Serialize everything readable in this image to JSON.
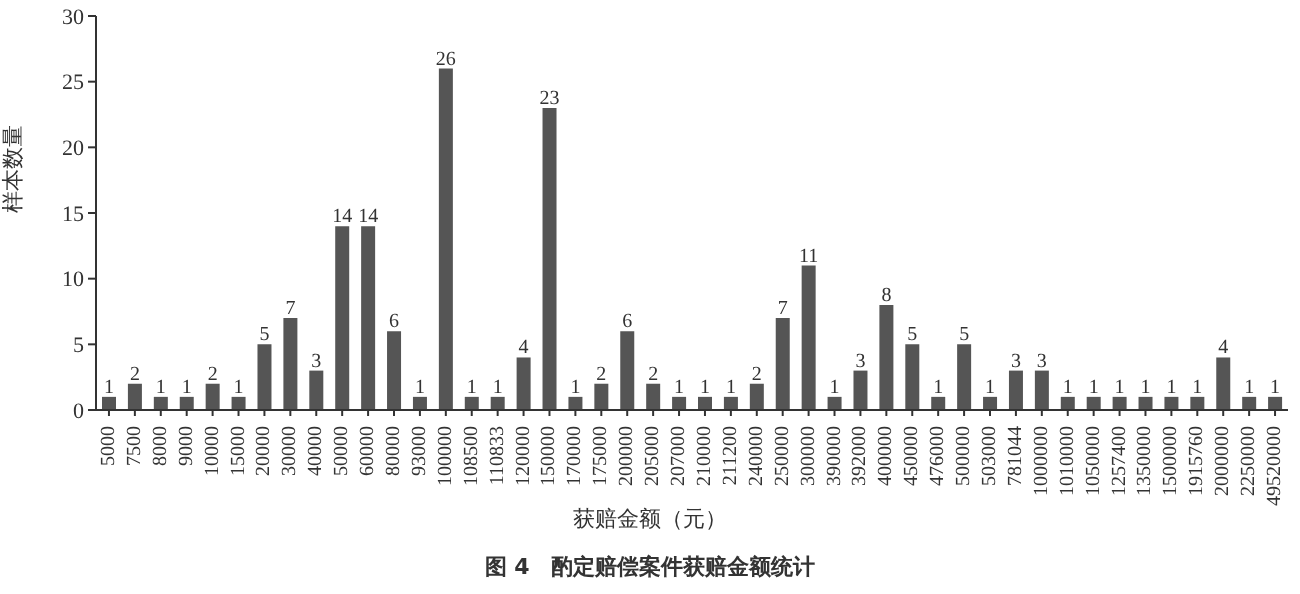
{
  "chart_data": {
    "type": "bar",
    "title": "图 4　酌定赔偿案件获赔金额统计",
    "xlabel": "获赔金额（元）",
    "ylabel": "样本数量",
    "categories": [
      "5000",
      "7500",
      "8000",
      "9000",
      "10000",
      "15000",
      "20000",
      "30000",
      "40000",
      "50000",
      "60000",
      "80000",
      "93000",
      "100000",
      "108500",
      "110833",
      "120000",
      "150000",
      "170000",
      "175000",
      "200000",
      "205000",
      "207000",
      "210000",
      "211200",
      "240000",
      "250000",
      "300000",
      "390000",
      "392000",
      "400000",
      "450000",
      "476000",
      "500000",
      "503000",
      "781044",
      "1000000",
      "1010000",
      "1050000",
      "1257400",
      "1350000",
      "1500000",
      "1915760",
      "2000000",
      "2250000",
      "49520000"
    ],
    "values": [
      1,
      2,
      1,
      1,
      2,
      1,
      5,
      7,
      3,
      14,
      14,
      6,
      1,
      26,
      1,
      1,
      4,
      23,
      1,
      2,
      6,
      2,
      1,
      1,
      1,
      2,
      7,
      11,
      1,
      3,
      8,
      5,
      1,
      5,
      1,
      3,
      3,
      1,
      1,
      1,
      1,
      1,
      1,
      4,
      1,
      1
    ],
    "color": "#555555",
    "ylim": [
      0,
      30
    ],
    "yticks": [
      0,
      5,
      10,
      15,
      20,
      25,
      30
    ],
    "data_labels": true
  }
}
